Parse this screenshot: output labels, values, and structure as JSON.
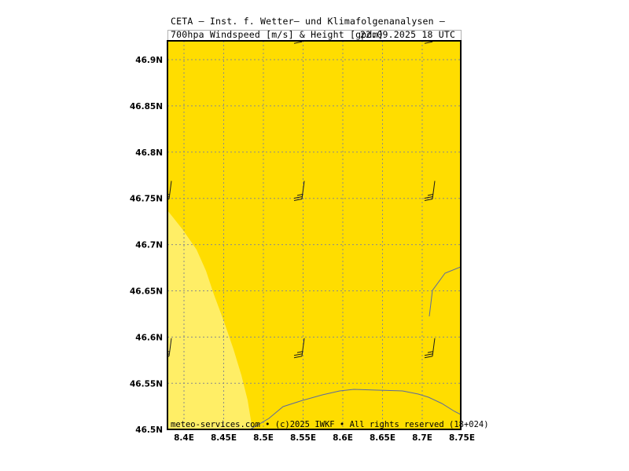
{
  "header": {
    "line1": "CETA – Inst. f. Wetter– und Klimafolgenanalysen –",
    "line2": "700hpa Windspeed [m/s] & Height [gpdm]",
    "valid_time": "22.09.2025 18 UTC"
  },
  "footer": {
    "credit": "meteo-services.com • (c)2025 IWKF • All rights reserved (18+024)"
  },
  "map": {
    "colors": {
      "background_fill": "#FFDD00",
      "lighter_fill": "#FFEE66",
      "contour_line": "#5a6aa0",
      "grid": "#8a8a8a",
      "barb": "#1a1a1a"
    },
    "lon_ticks": [
      "8.4E",
      "8.45E",
      "8.5E",
      "8.55E",
      "8.6E",
      "8.65E",
      "8.7E",
      "8.75E"
    ],
    "lat_ticks": [
      "46.9N",
      "46.85N",
      "46.8N",
      "46.75N",
      "46.7N",
      "46.65N",
      "46.6N",
      "46.55N",
      "46.5N"
    ],
    "lon_range": [
      8.38,
      8.75
    ],
    "lat_range": [
      46.5,
      46.925
    ],
    "wind_barbs": [
      {
        "lon": 8.38,
        "lat": 46.93
      },
      {
        "lon": 8.55,
        "lat": 46.92
      },
      {
        "lon": 8.71,
        "lat": 46.92
      },
      {
        "lon": 8.38,
        "lat": 46.75
      },
      {
        "lon": 8.55,
        "lat": 46.75
      },
      {
        "lon": 8.71,
        "lat": 46.75
      },
      {
        "lon": 8.38,
        "lat": 46.58
      },
      {
        "lon": 8.55,
        "lat": 46.58
      },
      {
        "lon": 8.71,
        "lat": 46.58
      }
    ]
  }
}
